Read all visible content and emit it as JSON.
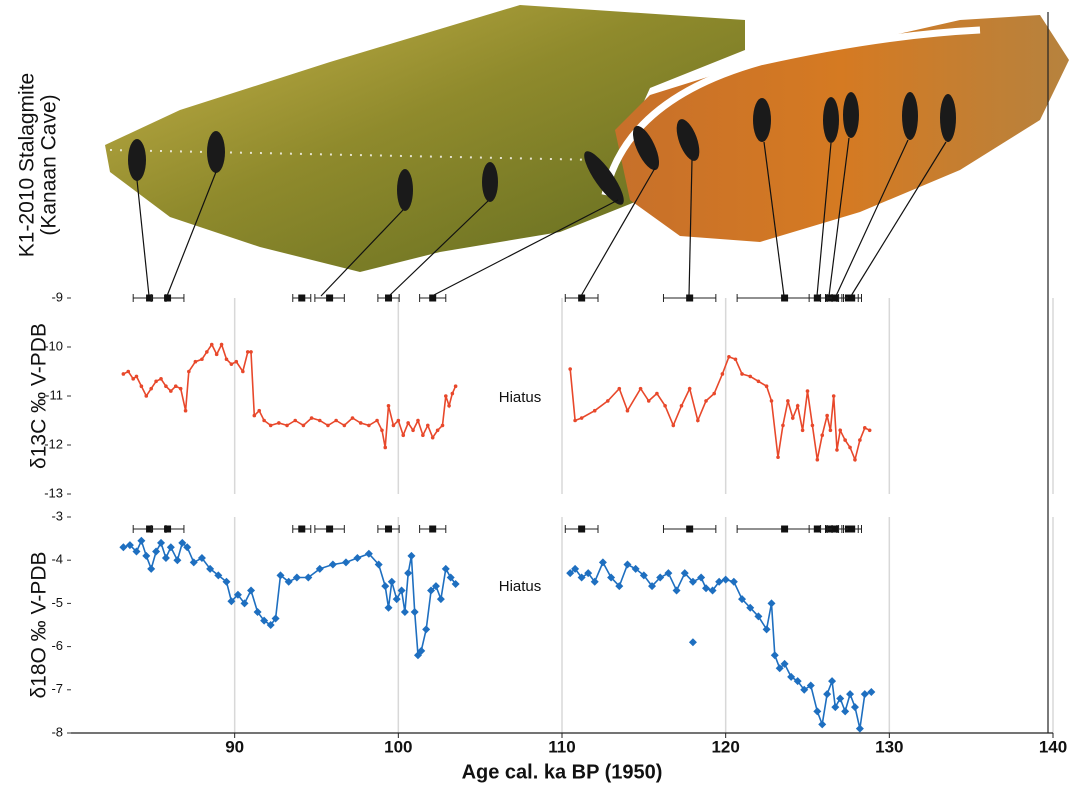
{
  "stalagmite": {
    "label_lines": [
      "K1-2010 Stalagmite",
      "(Kanaan Cave)"
    ]
  },
  "chart_data": [
    {
      "type": "line",
      "ylabel": "δ13C ‰ V-PDB",
      "annotation": "Hiatus",
      "color": "#e8482b",
      "marker": "circle",
      "xlim": [
        80,
        140
      ],
      "ylim": [
        -13,
        -9
      ],
      "yticks": [
        -9,
        -10,
        -11,
        -12,
        -13
      ],
      "xticks": [
        90,
        100,
        110,
        120,
        130,
        140
      ],
      "show_xtick_labels": false,
      "grid": true,
      "x": [
        83.2,
        83.5,
        83.8,
        84.0,
        84.3,
        84.6,
        84.9,
        85.2,
        85.5,
        85.8,
        86.1,
        86.4,
        86.7,
        87.0,
        87.2,
        87.6,
        88.0,
        88.3,
        88.6,
        88.9,
        89.2,
        89.5,
        89.8,
        90.1,
        90.5,
        90.8,
        91.0,
        91.2,
        91.5,
        91.8,
        92.2,
        92.7,
        93.2,
        93.7,
        94.2,
        94.7,
        95.2,
        95.7,
        96.2,
        96.7,
        97.2,
        97.7,
        98.2,
        98.7,
        99.0,
        99.2,
        99.4,
        99.7,
        100.0,
        100.3,
        100.6,
        100.9,
        101.2,
        101.5,
        101.8,
        102.1,
        102.4,
        102.7,
        102.9,
        103.1,
        103.3,
        103.5,
        107,
        110.5,
        110.8,
        111.2,
        112,
        112.8,
        113.5,
        114.0,
        114.8,
        115.3,
        115.8,
        116.3,
        116.8,
        117.3,
        117.8,
        118.3,
        118.8,
        119.3,
        119.8,
        120.2,
        120.6,
        121,
        121.5,
        122,
        122.5,
        122.8,
        123.2,
        123.5,
        123.8,
        124.1,
        124.4,
        124.7,
        125.0,
        125.3,
        125.6,
        125.9,
        126.2,
        126.4,
        126.6,
        126.8,
        127.0,
        127.3,
        127.6,
        127.9,
        128.2,
        128.5,
        128.8
      ],
      "values": [
        -10.55,
        -10.5,
        -10.65,
        -10.6,
        -10.8,
        -11.0,
        -10.85,
        -10.7,
        -10.65,
        -10.8,
        -10.9,
        -10.8,
        -10.85,
        -11.3,
        -10.5,
        -10.3,
        -10.25,
        -10.1,
        -9.95,
        -10.15,
        -9.95,
        -10.25,
        -10.35,
        -10.3,
        -10.5,
        -10.1,
        -10.1,
        -11.4,
        -11.3,
        -11.5,
        -11.6,
        -11.55,
        -11.6,
        -11.5,
        -11.6,
        -11.45,
        -11.5,
        -11.6,
        -11.5,
        -11.6,
        -11.45,
        -11.55,
        -11.6,
        -11.5,
        -11.7,
        -12.05,
        -11.2,
        -11.6,
        -11.5,
        -11.8,
        -11.55,
        -11.7,
        -11.5,
        -11.8,
        -11.6,
        -11.85,
        -11.7,
        -11.6,
        -11.0,
        -11.2,
        -10.95,
        -10.8,
        null,
        -10.45,
        -11.5,
        -11.45,
        -11.3,
        -11.1,
        -10.85,
        -11.3,
        -10.85,
        -11.1,
        -10.95,
        -11.2,
        -11.6,
        -11.2,
        -10.85,
        -11.5,
        -11.1,
        -10.95,
        -10.55,
        -10.2,
        -10.25,
        -10.55,
        -10.6,
        -10.7,
        -10.8,
        -11.1,
        -12.25,
        -11.6,
        -11.1,
        -11.45,
        -11.2,
        -11.7,
        -10.9,
        -11.6,
        -12.3,
        -11.8,
        -11.4,
        -11.7,
        -11.0,
        -12.1,
        -11.7,
        -11.9,
        -12.05,
        -12.3,
        -11.9,
        -11.65,
        -11.7
      ],
      "dates": {
        "x": [
          84.8,
          85.9,
          94.1,
          95.8,
          99.4,
          102.1,
          111.2,
          117.8,
          123.6,
          125.6,
          126.3,
          126.7,
          127.5,
          127.7
        ],
        "xerr": [
          1.0,
          1.0,
          0.55,
          0.9,
          0.65,
          0.8,
          1.0,
          1.6,
          2.9,
          0.5,
          0.5,
          0.5,
          0.6,
          0.6
        ]
      }
    },
    {
      "type": "line",
      "ylabel": "δ18O ‰ V-PDB",
      "xlabel": "Age cal. ka BP (1950)",
      "annotation": "Hiatus",
      "color": "#1e6fc0",
      "marker": "diamond",
      "xlim": [
        80,
        140
      ],
      "ylim": [
        -8,
        -3
      ],
      "yticks": [
        -3,
        -4,
        -5,
        -6,
        -7,
        -8
      ],
      "xticks": [
        90,
        100,
        110,
        120,
        130,
        140
      ],
      "show_xtick_labels": true,
      "grid": true,
      "x": [
        83.2,
        83.6,
        84.0,
        84.3,
        84.6,
        84.9,
        85.2,
        85.5,
        85.8,
        86.1,
        86.5,
        86.8,
        87.1,
        87.5,
        88.0,
        88.5,
        89.0,
        89.5,
        89.8,
        90.2,
        90.6,
        91.0,
        91.4,
        91.8,
        92.2,
        92.5,
        92.8,
        93.3,
        93.8,
        94.5,
        95.2,
        96.0,
        96.8,
        97.5,
        98.2,
        98.8,
        99.2,
        99.4,
        99.6,
        99.9,
        100.2,
        100.4,
        100.6,
        100.8,
        101.0,
        101.2,
        101.4,
        101.7,
        102.0,
        102.3,
        102.6,
        102.9,
        103.2,
        103.5,
        107,
        110.5,
        110.8,
        111.2,
        111.6,
        112.0,
        112.5,
        113.0,
        113.5,
        114.0,
        114.5,
        115.0,
        115.5,
        116.0,
        116.5,
        117.0,
        117.5,
        118.0,
        118.5,
        118.8,
        119.2,
        119.6,
        120.0,
        120.5,
        121.0,
        121.5,
        122.0,
        122.5,
        122.8,
        123.0,
        123.3,
        123.6,
        124.0,
        124.4,
        124.8,
        125.2,
        125.6,
        125.9,
        126.2,
        126.5,
        126.7,
        127.0,
        127.3,
        127.6,
        127.9,
        128.2,
        128.5,
        128.9
      ],
      "values": [
        -3.7,
        -3.65,
        -3.8,
        -3.55,
        -3.9,
        -4.2,
        -3.8,
        -3.6,
        -3.95,
        -3.7,
        -4.0,
        -3.6,
        -3.7,
        -4.05,
        -3.95,
        -4.2,
        -4.35,
        -4.5,
        -4.95,
        -4.8,
        -5.0,
        -4.7,
        -5.2,
        -5.4,
        -5.5,
        -5.35,
        -4.35,
        -4.5,
        -4.4,
        -4.4,
        -4.2,
        -4.1,
        -4.05,
        -3.95,
        -3.85,
        -4.1,
        -4.6,
        -5.1,
        -4.5,
        -4.9,
        -4.7,
        -5.2,
        -4.3,
        -3.9,
        -5.2,
        -6.2,
        -6.1,
        -5.6,
        -4.7,
        -4.6,
        -4.9,
        -4.2,
        -4.4,
        -4.55,
        null,
        -4.3,
        -4.2,
        -4.4,
        -4.3,
        -4.5,
        -4.05,
        -4.4,
        -4.6,
        -4.1,
        -4.2,
        -4.35,
        -4.6,
        -4.4,
        -4.3,
        -4.7,
        -4.3,
        -4.5,
        -4.4,
        -4.65,
        -4.7,
        -4.5,
        -4.45,
        -4.5,
        -4.9,
        -5.1,
        -5.3,
        -5.6,
        -5.0,
        -6.2,
        -6.5,
        -6.4,
        -6.7,
        -6.8,
        -7.0,
        -6.9,
        -7.5,
        -7.8,
        -7.1,
        -6.8,
        -7.4,
        -7.2,
        -7.5,
        -7.1,
        -7.4,
        -7.9,
        -7.1,
        -7.05
      ],
      "points": {
        "x": [
          118.0
        ],
        "values": [
          -5.9
        ]
      },
      "dates": {
        "x": [
          84.8,
          85.9,
          94.1,
          95.8,
          99.4,
          102.1,
          111.2,
          117.8,
          123.6,
          125.6,
          126.3,
          126.7,
          127.5,
          127.7
        ],
        "xerr": [
          1.0,
          1.0,
          0.55,
          0.9,
          0.65,
          0.8,
          1.0,
          1.6,
          2.9,
          0.5,
          0.5,
          0.5,
          0.6,
          0.6
        ]
      }
    }
  ]
}
